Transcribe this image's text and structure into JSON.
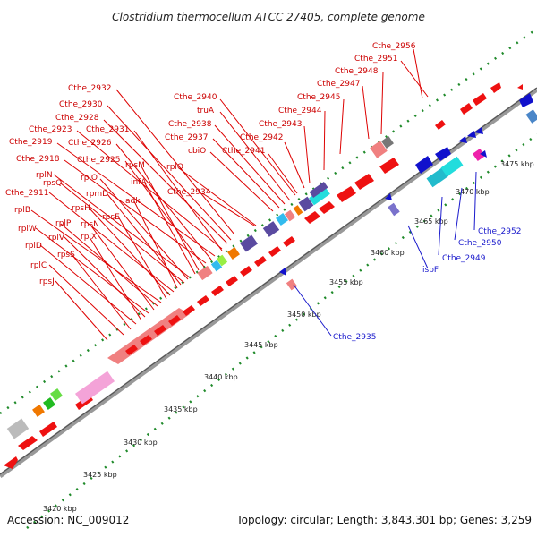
{
  "title": "Clostridium thermocellum ATCC 27405, complete genome",
  "footer": {
    "accession": "Accession: NC_009012",
    "topology": "Topology: circular; Length: 3,843,301 bp; Genes: 3,259"
  },
  "ruler_ticks": [
    "3420 kbp",
    "3425 kbp",
    "3430 kbp",
    "3435 kbp",
    "3440 kbp",
    "3445 kbp",
    "3450 kbp",
    "3455 kbp",
    "3460 kbp",
    "3465 kbp",
    "3470 kbp",
    "3475 kbp"
  ],
  "gene_labels_red": [
    "Cthe_2956",
    "Cthe_2951",
    "Cthe_2948",
    "Cthe_2947",
    "Cthe_2945",
    "Cthe_2944",
    "Cthe_2943",
    "Cthe_2942",
    "Cthe_2941",
    "Cthe_2940",
    "truA",
    "Cthe_2938",
    "Cthe_2937",
    "cbiO",
    "rplQ",
    "Cthe_2934",
    "Cthe_2932",
    "Cthe_2930",
    "Cthe_2928",
    "Cthe_2923",
    "Cthe_2931",
    "Cthe_2919",
    "Cthe_2926",
    "Cthe_2918",
    "Cthe_2925",
    "rpsM",
    "infA",
    "rplN",
    "rplO",
    "rpsQ",
    "rpmD",
    "adk",
    "Cthe_2911",
    "rpsH",
    "rpsE",
    "rplB",
    "rplP",
    "rpsN",
    "rplW",
    "rplV",
    "rplX",
    "rplD",
    "rpsS",
    "rplC",
    "rpsJ"
  ],
  "gene_labels_blue": [
    "Cthe_2935",
    "ispF",
    "Cthe_2949",
    "Cthe_2950",
    "Cthe_2952"
  ]
}
